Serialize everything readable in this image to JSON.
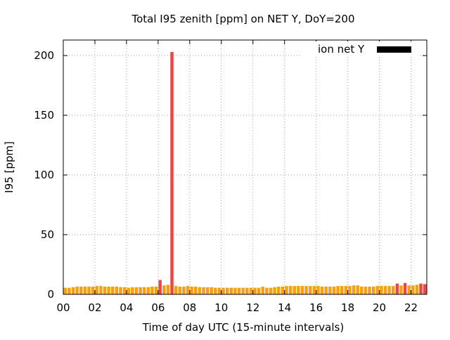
{
  "colors": {
    "normal_bar": "#f5a10f",
    "high_bar": "#e84848",
    "legend_swatch": "#000000",
    "grid": "#a0a0a0"
  },
  "chart_data": {
    "type": "bar",
    "title": "Total I95 zenith [ppm] on NET Y, DoY=200",
    "xlabel": "Time of day UTC (15-minute intervals)",
    "ylabel": "I95 [ppm]",
    "xlim": [
      0,
      23
    ],
    "ylim": [
      0,
      213
    ],
    "x_ticks": [
      "00",
      "02",
      "04",
      "06",
      "08",
      "10",
      "12",
      "14",
      "16",
      "18",
      "20",
      "22"
    ],
    "y_ticks": [
      "0",
      "50",
      "100",
      "150",
      "200"
    ],
    "grid": true,
    "legend": {
      "label": "ion net Y",
      "position": "top-right"
    },
    "bar_interval_hours": 0.25,
    "high_threshold": 8,
    "values": [
      5.5,
      5.5,
      6.0,
      6.5,
      6.5,
      6.5,
      6.5,
      6.5,
      7.0,
      7.0,
      6.5,
      6.5,
      6.5,
      6.5,
      6.0,
      6.0,
      5.5,
      6.0,
      6.0,
      6.0,
      6.0,
      6.0,
      6.5,
      6.5,
      12.0,
      7.5,
      8.0,
      203.0,
      7.0,
      6.5,
      6.5,
      7.0,
      6.5,
      6.5,
      6.0,
      6.0,
      6.0,
      6.0,
      5.5,
      5.5,
      5.5,
      5.5,
      5.5,
      5.5,
      5.5,
      5.5,
      5.5,
      5.5,
      5.5,
      5.5,
      6.5,
      5.5,
      5.5,
      6.0,
      6.5,
      6.5,
      7.0,
      7.0,
      7.0,
      7.0,
      7.0,
      7.0,
      7.0,
      7.0,
      7.0,
      6.5,
      6.5,
      6.5,
      6.5,
      7.0,
      7.0,
      7.0,
      7.0,
      7.5,
      7.5,
      6.5,
      6.5,
      6.5,
      6.5,
      7.0,
      7.0,
      7.0,
      7.0,
      7.0,
      9.0,
      7.5,
      9.5,
      7.5,
      7.5,
      8.0,
      9.0,
      8.5
    ]
  }
}
